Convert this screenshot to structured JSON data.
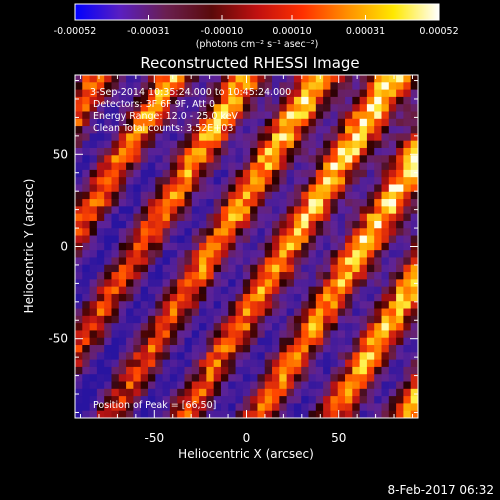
{
  "figure": {
    "title": "Reconstructed RHESSI Image",
    "timestamp": "8-Feb-2017 06:32",
    "info_lines": [
      "3-Sep-2014 10:35:24.000 to 10:45:24.000",
      "Detectors: 3F 6F 9F, Att 0",
      "Energy Range: 12.0 - 25.0 keV",
      "Clean     Total counts: 3.52E+03"
    ],
    "peak_label": "Position of Peak = [66,50]"
  },
  "colorbar": {
    "unit_label": "(photons cm⁻² s⁻¹ asec⁻²)",
    "ticks": [
      {
        "label": "-0.00052",
        "value": -0.00052
      },
      {
        "label": "-0.00031",
        "value": -0.00031
      },
      {
        "label": "-0.00010",
        "value": -0.0001
      },
      {
        "label": "0.00010",
        "value": 0.0001
      },
      {
        "label": "0.00031",
        "value": 0.00031
      },
      {
        "label": "0.00052",
        "value": 0.00052
      }
    ],
    "colors": [
      "#0000ff",
      "#5a1fc0",
      "#6a1f50",
      "#5a0a0a",
      "#c01010",
      "#ff3000",
      "#ff9000",
      "#ffe800",
      "#ffffff"
    ]
  },
  "axes": {
    "xlabel": "Heliocentric X (arcsec)",
    "ylabel": "Heliocentric Y (arcsec)",
    "x_range": [
      -93,
      93
    ],
    "y_range": [
      -93,
      93
    ],
    "x_ticks": [
      {
        "label": "-50",
        "value": -50
      },
      {
        "label": "0",
        "value": 0
      },
      {
        "label": "50",
        "value": 50
      }
    ],
    "y_ticks": [
      {
        "label": "-50",
        "value": -50
      },
      {
        "label": "0",
        "value": 0
      },
      {
        "label": "50",
        "value": 50
      }
    ]
  }
}
